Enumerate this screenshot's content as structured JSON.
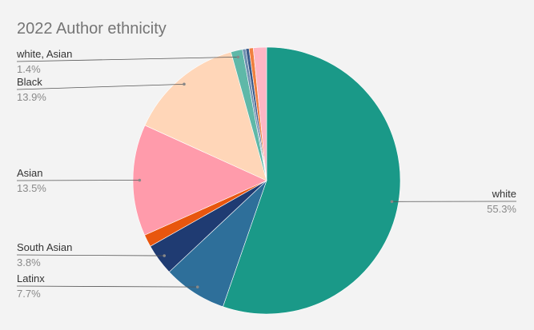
{
  "chart_data": {
    "type": "pie",
    "title": "2022 Author ethnicity",
    "categories": [
      "white",
      "Latinx",
      "South Asian",
      null,
      "Asian",
      "Black",
      "white, Asian",
      null,
      null,
      null,
      null
    ],
    "values": [
      55.3,
      7.7,
      3.8,
      1.5,
      13.5,
      13.9,
      1.4,
      0.4,
      0.4,
      0.5,
      1.6
    ],
    "value_labels": [
      "55.3%",
      "7.7%",
      "3.8%",
      null,
      "13.5%",
      "13.9%",
      "1.4%",
      null,
      null,
      null,
      null
    ],
    "colors": [
      "#1a9988",
      "#2e6f9a",
      "#1f3b72",
      "#e8560e",
      "#ff9bab",
      "#ffd6b8",
      "#5fb8a8",
      "#6f8fb0",
      "#3b5a8a",
      "#f08040",
      "#ffb6c4"
    ]
  }
}
